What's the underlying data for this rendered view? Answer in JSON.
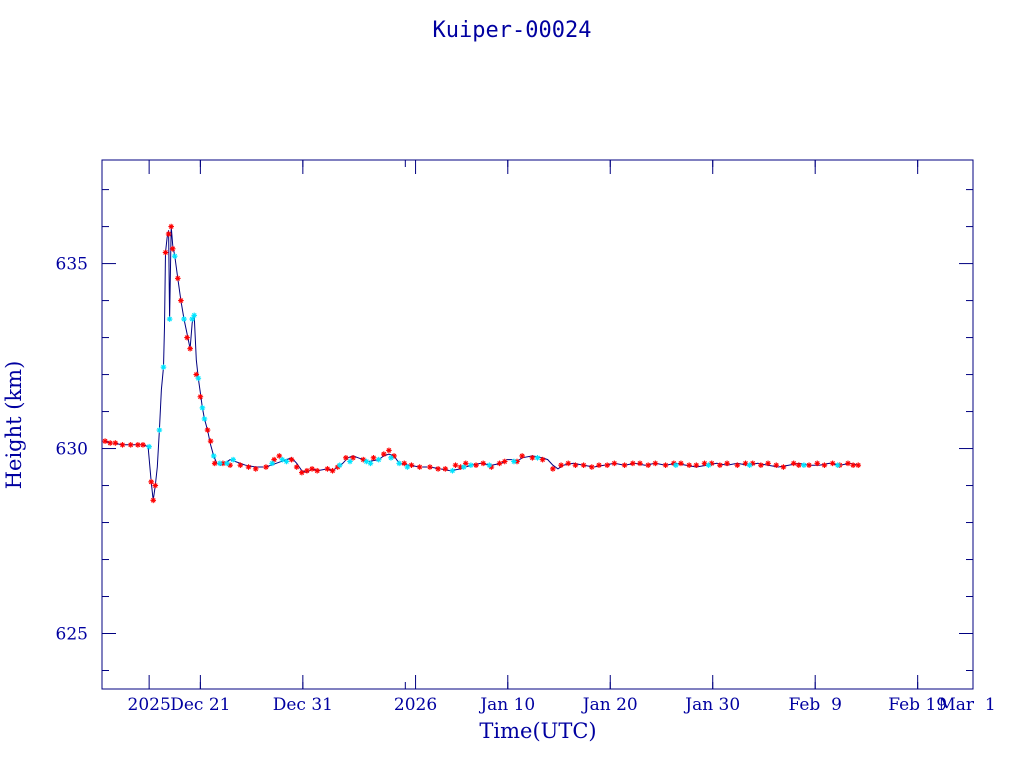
{
  "chart_data": {
    "type": "line",
    "title": "Kuiper-00024",
    "xlabel": "Time(UTC)",
    "ylabel": "Height (km)",
    "xlim": [
      0,
      85
    ],
    "ylim": [
      623.5,
      637.8
    ],
    "yticks": [
      625,
      630,
      635
    ],
    "xticks": [
      {
        "x": 4.6,
        "label": "2025"
      },
      {
        "x": 9.6,
        "label": "Dec 21"
      },
      {
        "x": 19.6,
        "label": "Dec 31"
      },
      {
        "x": 30.6,
        "label": "2026"
      },
      {
        "x": 39.6,
        "label": "Jan 10"
      },
      {
        "x": 49.6,
        "label": "Jan 20"
      },
      {
        "x": 59.6,
        "label": "Jan 30"
      },
      {
        "x": 69.6,
        "label": "Feb  9"
      },
      {
        "x": 79.6,
        "label": "Feb 19"
      },
      {
        "x": 89.6,
        "label": "Mar  1"
      }
    ],
    "x_axis_start_date": "2025-12-07",
    "grid": false,
    "series": [
      {
        "color": "#000080",
        "points": [
          [
            0.2,
            630.2
          ],
          [
            1.0,
            630.15
          ],
          [
            2.0,
            630.1
          ],
          [
            3.0,
            630.1
          ],
          [
            4.0,
            630.1
          ],
          [
            4.5,
            630.05
          ],
          [
            4.8,
            629.1
          ],
          [
            5.0,
            628.6
          ],
          [
            5.2,
            629.0
          ],
          [
            5.4,
            629.5
          ],
          [
            5.6,
            630.5
          ],
          [
            5.8,
            631.6
          ],
          [
            6.0,
            632.2
          ],
          [
            6.1,
            633.3
          ],
          [
            6.2,
            635.3
          ],
          [
            6.35,
            635.7
          ],
          [
            6.5,
            635.9
          ],
          [
            6.6,
            633.5
          ],
          [
            6.75,
            636.0
          ],
          [
            6.9,
            635.5
          ],
          [
            7.1,
            635.2
          ],
          [
            7.4,
            634.6
          ],
          [
            7.7,
            634.0
          ],
          [
            8.0,
            633.5
          ],
          [
            8.3,
            633.1
          ],
          [
            8.6,
            632.7
          ],
          [
            8.8,
            633.4
          ],
          [
            9.0,
            633.6
          ],
          [
            9.2,
            632.4
          ],
          [
            9.4,
            631.9
          ],
          [
            9.6,
            631.5
          ],
          [
            9.8,
            631.1
          ],
          [
            10.0,
            630.8
          ],
          [
            10.3,
            630.5
          ],
          [
            10.6,
            630.1
          ],
          [
            10.9,
            629.8
          ],
          [
            11.2,
            629.6
          ],
          [
            11.6,
            629.55
          ],
          [
            12.0,
            629.6
          ],
          [
            12.5,
            629.7
          ],
          [
            13.0,
            629.65
          ],
          [
            14.0,
            629.55
          ],
          [
            15.0,
            629.5
          ],
          [
            16.0,
            629.5
          ],
          [
            17.0,
            629.6
          ],
          [
            18.0,
            629.7
          ],
          [
            18.5,
            629.75
          ],
          [
            19.0,
            629.6
          ],
          [
            19.5,
            629.4
          ],
          [
            20.0,
            629.35
          ],
          [
            20.5,
            629.45
          ],
          [
            21.0,
            629.4
          ],
          [
            22.0,
            629.45
          ],
          [
            22.5,
            629.4
          ],
          [
            23.0,
            629.5
          ],
          [
            23.5,
            629.6
          ],
          [
            24.0,
            629.75
          ],
          [
            24.5,
            629.8
          ],
          [
            25.0,
            629.75
          ],
          [
            26.0,
            629.65
          ],
          [
            27.0,
            629.7
          ],
          [
            27.5,
            629.8
          ],
          [
            28.0,
            629.85
          ],
          [
            28.5,
            629.8
          ],
          [
            29.0,
            629.6
          ],
          [
            30.0,
            629.55
          ],
          [
            31.0,
            629.5
          ],
          [
            32.0,
            629.5
          ],
          [
            33.0,
            629.45
          ],
          [
            34.0,
            629.4
          ],
          [
            35.0,
            629.45
          ],
          [
            36.0,
            629.55
          ],
          [
            37.0,
            629.6
          ],
          [
            38.0,
            629.55
          ],
          [
            39.0,
            629.6
          ],
          [
            39.5,
            629.7
          ],
          [
            40.0,
            629.7
          ],
          [
            40.5,
            629.65
          ],
          [
            41.0,
            629.75
          ],
          [
            42.0,
            629.8
          ],
          [
            43.0,
            629.75
          ],
          [
            43.5,
            629.7
          ],
          [
            44.0,
            629.55
          ],
          [
            44.5,
            629.45
          ],
          [
            45.0,
            629.55
          ],
          [
            46.0,
            629.6
          ],
          [
            47.0,
            629.55
          ],
          [
            48.0,
            629.5
          ],
          [
            49.0,
            629.55
          ],
          [
            50.0,
            629.6
          ],
          [
            51.0,
            629.55
          ],
          [
            52.0,
            629.6
          ],
          [
            53.0,
            629.55
          ],
          [
            54.0,
            629.6
          ],
          [
            55.0,
            629.55
          ],
          [
            56.0,
            629.6
          ],
          [
            57.0,
            629.55
          ],
          [
            58.0,
            629.5
          ],
          [
            59.0,
            629.55
          ],
          [
            60.0,
            629.6
          ],
          [
            61.0,
            629.55
          ],
          [
            62.0,
            629.6
          ],
          [
            63.0,
            629.55
          ],
          [
            64.0,
            629.6
          ],
          [
            65.0,
            629.55
          ],
          [
            66.0,
            629.5
          ],
          [
            67.0,
            629.55
          ],
          [
            68.0,
            629.6
          ],
          [
            69.0,
            629.55
          ],
          [
            70.0,
            629.55
          ],
          [
            71.0,
            629.6
          ],
          [
            72.0,
            629.55
          ],
          [
            73.0,
            629.6
          ],
          [
            73.8,
            629.55
          ]
        ]
      },
      {
        "color": "#ff0000",
        "marker": "*",
        "points": [
          [
            0.3,
            630.2
          ],
          [
            0.8,
            630.15
          ],
          [
            1.3,
            630.15
          ],
          [
            2.0,
            630.1
          ],
          [
            2.8,
            630.1
          ],
          [
            3.5,
            630.1
          ],
          [
            4.0,
            630.1
          ],
          [
            4.8,
            629.1
          ],
          [
            5.0,
            628.6
          ],
          [
            5.2,
            629.0
          ],
          [
            6.2,
            635.3
          ],
          [
            6.5,
            635.8
          ],
          [
            6.75,
            636.0
          ],
          [
            6.9,
            635.4
          ],
          [
            7.4,
            634.6
          ],
          [
            7.7,
            634.0
          ],
          [
            8.3,
            633.0
          ],
          [
            8.6,
            632.7
          ],
          [
            9.2,
            632.0
          ],
          [
            9.6,
            631.4
          ],
          [
            10.3,
            630.5
          ],
          [
            10.6,
            630.2
          ],
          [
            11.0,
            629.6
          ],
          [
            11.8,
            629.6
          ],
          [
            12.5,
            629.55
          ],
          [
            13.5,
            629.55
          ],
          [
            14.3,
            629.5
          ],
          [
            15.0,
            629.45
          ],
          [
            16.0,
            629.5
          ],
          [
            16.8,
            629.7
          ],
          [
            17.3,
            629.8
          ],
          [
            18.5,
            629.7
          ],
          [
            19.0,
            629.5
          ],
          [
            19.5,
            629.35
          ],
          [
            20.0,
            629.4
          ],
          [
            20.5,
            629.45
          ],
          [
            21.0,
            629.4
          ],
          [
            22.0,
            629.45
          ],
          [
            22.5,
            629.4
          ],
          [
            23.0,
            629.5
          ],
          [
            23.8,
            629.75
          ],
          [
            24.5,
            629.75
          ],
          [
            25.5,
            629.7
          ],
          [
            26.5,
            629.75
          ],
          [
            27.5,
            629.85
          ],
          [
            28.0,
            629.95
          ],
          [
            28.5,
            629.8
          ],
          [
            29.5,
            629.6
          ],
          [
            30.2,
            629.55
          ],
          [
            31.0,
            629.5
          ],
          [
            32.0,
            629.5
          ],
          [
            32.8,
            629.45
          ],
          [
            33.5,
            629.45
          ],
          [
            34.5,
            629.55
          ],
          [
            35.0,
            629.5
          ],
          [
            35.5,
            629.6
          ],
          [
            36.5,
            629.55
          ],
          [
            37.2,
            629.6
          ],
          [
            38.0,
            629.5
          ],
          [
            38.8,
            629.6
          ],
          [
            39.3,
            629.65
          ],
          [
            40.5,
            629.65
          ],
          [
            41.0,
            629.8
          ],
          [
            42.0,
            629.75
          ],
          [
            43.0,
            629.7
          ],
          [
            44.0,
            629.45
          ],
          [
            44.8,
            629.55
          ],
          [
            45.5,
            629.6
          ],
          [
            46.2,
            629.55
          ],
          [
            47.0,
            629.55
          ],
          [
            47.8,
            629.5
          ],
          [
            48.5,
            629.55
          ],
          [
            49.3,
            629.55
          ],
          [
            50.0,
            629.6
          ],
          [
            51.0,
            629.55
          ],
          [
            51.8,
            629.6
          ],
          [
            52.5,
            629.6
          ],
          [
            53.3,
            629.55
          ],
          [
            54.0,
            629.6
          ],
          [
            55.0,
            629.55
          ],
          [
            55.8,
            629.6
          ],
          [
            56.5,
            629.6
          ],
          [
            57.3,
            629.55
          ],
          [
            58.0,
            629.55
          ],
          [
            58.8,
            629.6
          ],
          [
            59.5,
            629.6
          ],
          [
            60.3,
            629.55
          ],
          [
            61.0,
            629.6
          ],
          [
            62.0,
            629.55
          ],
          [
            62.8,
            629.6
          ],
          [
            63.5,
            629.6
          ],
          [
            64.3,
            629.55
          ],
          [
            65.0,
            629.6
          ],
          [
            65.8,
            629.55
          ],
          [
            66.5,
            629.5
          ],
          [
            67.5,
            629.6
          ],
          [
            68.0,
            629.55
          ],
          [
            69.0,
            629.55
          ],
          [
            69.8,
            629.6
          ],
          [
            70.5,
            629.55
          ],
          [
            71.3,
            629.6
          ],
          [
            72.0,
            629.55
          ],
          [
            72.8,
            629.6
          ],
          [
            73.3,
            629.55
          ],
          [
            73.8,
            629.55
          ]
        ]
      },
      {
        "color": "#00e5ff",
        "marker": "*",
        "points": [
          [
            4.6,
            630.05
          ],
          [
            5.6,
            630.5
          ],
          [
            6.0,
            632.2
          ],
          [
            6.6,
            633.5
          ],
          [
            7.1,
            635.2
          ],
          [
            8.0,
            633.5
          ],
          [
            8.8,
            633.5
          ],
          [
            9.0,
            633.6
          ],
          [
            9.4,
            631.9
          ],
          [
            9.8,
            631.1
          ],
          [
            10.0,
            630.8
          ],
          [
            10.9,
            629.8
          ],
          [
            11.5,
            629.6
          ],
          [
            12.2,
            629.6
          ],
          [
            12.8,
            629.7
          ],
          [
            16.6,
            629.6
          ],
          [
            17.6,
            629.7
          ],
          [
            18.0,
            629.65
          ],
          [
            23.2,
            629.55
          ],
          [
            24.2,
            629.65
          ],
          [
            25.8,
            629.65
          ],
          [
            26.2,
            629.6
          ],
          [
            27.0,
            629.7
          ],
          [
            28.2,
            629.75
          ],
          [
            29.0,
            629.6
          ],
          [
            29.8,
            629.5
          ],
          [
            34.2,
            629.4
          ],
          [
            35.3,
            629.5
          ],
          [
            36.0,
            629.55
          ],
          [
            37.8,
            629.55
          ],
          [
            40.2,
            629.65
          ],
          [
            42.5,
            629.75
          ],
          [
            56.0,
            629.55
          ],
          [
            59.2,
            629.55
          ],
          [
            63.2,
            629.55
          ],
          [
            68.5,
            629.55
          ],
          [
            71.8,
            629.55
          ]
        ]
      }
    ]
  }
}
